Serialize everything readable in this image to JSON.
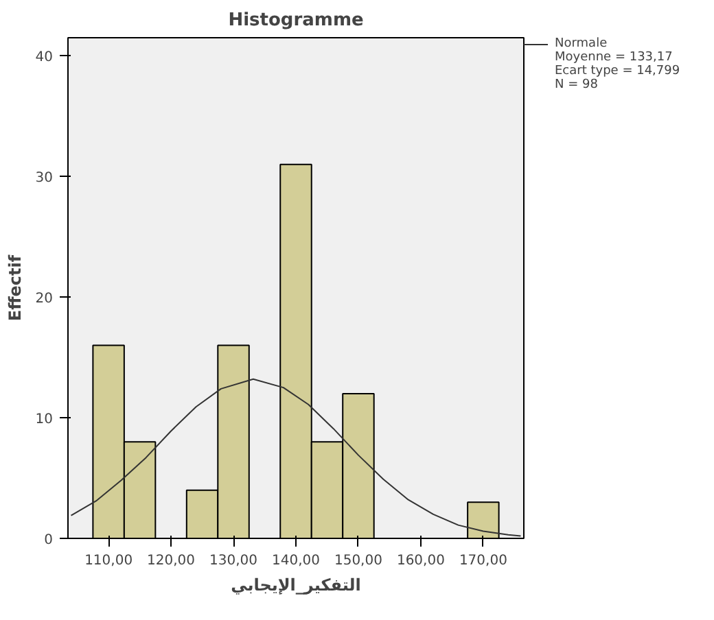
{
  "chart_data": {
    "type": "histogram",
    "title": "Histogramme",
    "xlabel": "التفكير_الإيجابي",
    "ylabel": "Effectif",
    "bins": [
      107.5,
      112.5,
      117.5,
      122.5,
      127.5,
      132.5,
      137.5,
      142.5,
      147.5,
      152.5,
      157.5,
      162.5,
      167.5,
      172.5
    ],
    "values": [
      16,
      8,
      0,
      4,
      16,
      0,
      31,
      8,
      12,
      0,
      0,
      0,
      3
    ],
    "color": "#d3ce97",
    "series": [
      {
        "name": "Normale",
        "type": "line",
        "color": "#333333",
        "x": [
          104,
          108,
          112,
          116,
          120,
          124,
          128,
          133.17,
          138,
          142,
          146,
          150,
          154,
          158,
          162,
          166,
          170,
          174,
          176
        ],
        "values": [
          1.9,
          3.1,
          4.8,
          6.7,
          8.9,
          10.9,
          12.4,
          13.2,
          12.5,
          11.1,
          9.1,
          6.9,
          4.9,
          3.2,
          2.0,
          1.1,
          0.6,
          0.3,
          0.2
        ]
      }
    ],
    "xlim": [
      103.5,
      176.5
    ],
    "ylim": [
      0,
      41.5
    ],
    "xticks": [
      {
        "value": 110,
        "label": "110,00"
      },
      {
        "value": 120,
        "label": "120,00"
      },
      {
        "value": 130,
        "label": "130,00"
      },
      {
        "value": 140,
        "label": "140,00"
      },
      {
        "value": 150,
        "label": "150,00"
      },
      {
        "value": 160,
        "label": "160,00"
      },
      {
        "value": 170,
        "label": "170,00"
      }
    ],
    "yticks": [
      0,
      10,
      20,
      30,
      40
    ],
    "annotations": [
      "Moyenne = 133,17",
      "Ecart type = 14,799",
      "N = 98"
    ],
    "legend": "top right",
    "grid": false,
    "line_style": "solid",
    "marker": "none"
  }
}
